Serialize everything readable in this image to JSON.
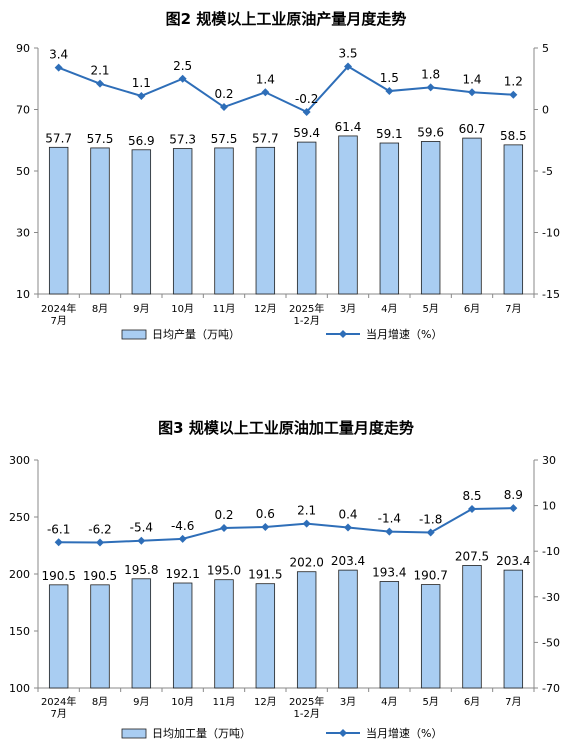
{
  "chart_data": [
    {
      "type": "bar",
      "title": "图2  规模以上工业原油产量月度走势",
      "categories": [
        [
          "2024年",
          "7月"
        ],
        [
          "8月"
        ],
        [
          "9月"
        ],
        [
          "10月"
        ],
        [
          "11月"
        ],
        [
          "12月"
        ],
        [
          "2025年",
          "1-2月"
        ],
        [
          "3月"
        ],
        [
          "4月"
        ],
        [
          "5月"
        ],
        [
          "6月"
        ],
        [
          "7月"
        ]
      ],
      "series": [
        {
          "name": "日均产量（万吨）",
          "type": "bar",
          "axis": "left",
          "values": [
            57.7,
            57.5,
            56.9,
            57.3,
            57.5,
            57.7,
            59.4,
            61.4,
            59.1,
            59.6,
            60.7,
            58.5
          ]
        },
        {
          "name": "当月增速（%）",
          "type": "line",
          "axis": "right",
          "values": [
            3.4,
            2.1,
            1.1,
            2.5,
            0.2,
            1.4,
            -0.2,
            3.5,
            1.5,
            1.8,
            1.4,
            1.2
          ]
        }
      ],
      "ylim_left": [
        10,
        90
      ],
      "yticks_left": [
        10,
        30,
        50,
        70,
        90
      ],
      "ylim_right": [
        -15,
        5
      ],
      "yticks_right": [
        -15,
        -10,
        -5,
        0,
        5
      ],
      "grid": false,
      "legend": "bottom",
      "colors": {
        "bar_fill": "#a9cdf2",
        "bar_stroke": "#1f1f1f",
        "line": "#2e6eb8"
      }
    },
    {
      "type": "bar",
      "title": "图3  规模以上工业原油加工量月度走势",
      "categories": [
        [
          "2024年",
          "7月"
        ],
        [
          "8月"
        ],
        [
          "9月"
        ],
        [
          "10月"
        ],
        [
          "11月"
        ],
        [
          "12月"
        ],
        [
          "2025年",
          "1-2月"
        ],
        [
          "3月"
        ],
        [
          "4月"
        ],
        [
          "5月"
        ],
        [
          "6月"
        ],
        [
          "7月"
        ]
      ],
      "series": [
        {
          "name": "日均加工量（万吨）",
          "type": "bar",
          "axis": "left",
          "values": [
            190.5,
            190.5,
            195.8,
            192.1,
            195.0,
            191.5,
            202.0,
            203.4,
            193.4,
            190.7,
            207.5,
            203.4
          ]
        },
        {
          "name": "当月增速（%）",
          "type": "line",
          "axis": "right",
          "values": [
            -6.1,
            -6.2,
            -5.4,
            -4.6,
            0.2,
            0.6,
            2.1,
            0.4,
            -1.4,
            -1.8,
            8.5,
            8.9
          ]
        }
      ],
      "ylim_left": [
        100,
        300
      ],
      "yticks_left": [
        100,
        150,
        200,
        250,
        300
      ],
      "ylim_right": [
        -70,
        30
      ],
      "yticks_right": [
        -70,
        -50,
        -30,
        -10,
        10,
        30
      ],
      "grid": false,
      "legend": "bottom",
      "colors": {
        "bar_fill": "#a9cdf2",
        "bar_stroke": "#1f1f1f",
        "line": "#2e6eb8"
      }
    }
  ]
}
